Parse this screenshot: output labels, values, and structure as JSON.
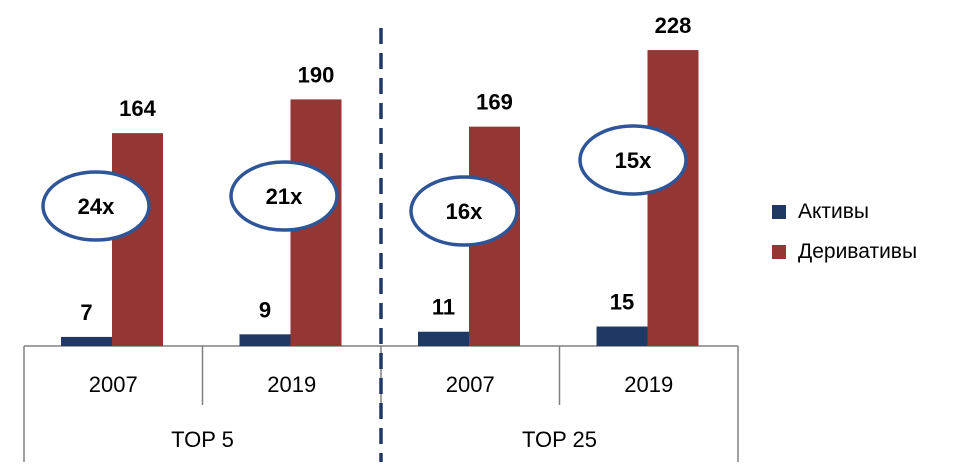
{
  "chart_data": {
    "type": "bar",
    "groups": [
      {
        "label": "TOP 5",
        "categories": [
          "2007",
          "2019"
        ]
      },
      {
        "label": "TOP 25",
        "categories": [
          "2007",
          "2019"
        ]
      }
    ],
    "categories": [
      "2007",
      "2019",
      "2007",
      "2019"
    ],
    "series": [
      {
        "name": "Активы",
        "color": "#1F3864",
        "values": [
          7,
          9,
          11,
          15
        ]
      },
      {
        "name": "Деривативы",
        "color": "#943634",
        "values": [
          164,
          190,
          169,
          228
        ]
      }
    ],
    "annotations": [
      "24x",
      "21x",
      "16x",
      "15x"
    ],
    "ylim": [
      0,
      245
    ],
    "legend_position": "right",
    "grid": false,
    "colors": {
      "oval_border": "#2E5597",
      "group_divider": "#1F3864",
      "axis": "#808080"
    }
  }
}
